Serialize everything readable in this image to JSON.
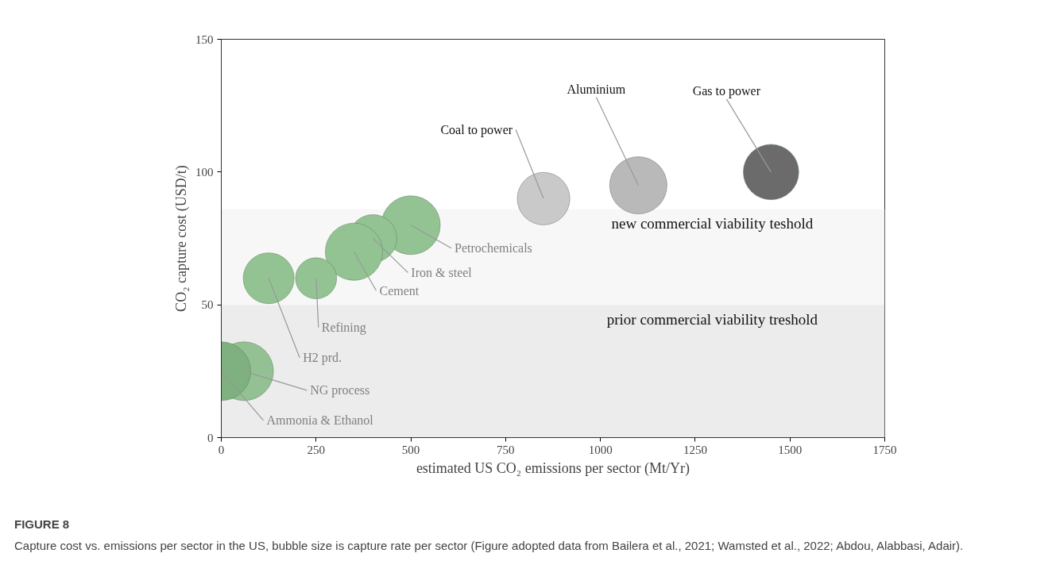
{
  "chart_data": {
    "type": "bubble",
    "xlabel": "estimated US CO₂ emissions per sector (Mt/Yr)",
    "ylabel": "CO₂ capture cost (USD/t)",
    "x": [
      0,
      60,
      125,
      250,
      350,
      400,
      500,
      850,
      1100,
      1450
    ],
    "values": [
      25,
      25,
      60,
      60,
      70,
      75,
      80,
      90,
      95,
      100
    ],
    "sizes": [
      1,
      1,
      0.75,
      0.49,
      0.95,
      0.66,
      1,
      0.8,
      0.95,
      0.89
    ],
    "colors": [
      "#7fb07f",
      "#93c193",
      "#93c393",
      "#93c393",
      "#93c393",
      "#93c393",
      "#93c393",
      "#c9c9c9",
      "#b9b9b9",
      "#6b6b6b"
    ],
    "xlim": [
      0,
      1750
    ],
    "ylim": [
      0,
      150
    ],
    "xticks": [
      0,
      250,
      500,
      750,
      1000,
      1250,
      1500,
      1750
    ],
    "yticks": [
      0,
      50,
      100,
      150
    ],
    "grid": false,
    "legend": false,
    "bands": [
      {
        "axis": "y",
        "from": 0,
        "to": 50,
        "label": "prior commercial viability treshold",
        "color": "#ececec"
      },
      {
        "axis": "y",
        "from": 50,
        "to": 86,
        "label": "new commercial viability teshold",
        "color": "#f7f7f7"
      }
    ],
    "annotations": [
      {
        "text": "Ammonia  & Ethanol",
        "x": 0,
        "y": 25
      },
      {
        "text": "NG process",
        "x": 60,
        "y": 25
      },
      {
        "text": "H2 prd.",
        "x": 125,
        "y": 60
      },
      {
        "text": "Refining",
        "x": 250,
        "y": 60
      },
      {
        "text": "Cement",
        "x": 350,
        "y": 70
      },
      {
        "text": "Iron & steel",
        "x": 400,
        "y": 75
      },
      {
        "text": "Petrochemicals",
        "x": 500,
        "y": 80
      },
      {
        "text": "Coal to power",
        "x": 850,
        "y": 90
      },
      {
        "text": "Aluminium",
        "x": 1100,
        "y": 95
      },
      {
        "text": "Gas to power",
        "x": 1450,
        "y": 100
      },
      "FIGURE 8",
      "Capture cost vs. emissions per sector in the US, bubble size is capture rate per sector (Figure adopted data from Bailera et al., 2021; Wamsted et al., 2022; Abdou, Alabbasi, Adair)."
    ]
  }
}
